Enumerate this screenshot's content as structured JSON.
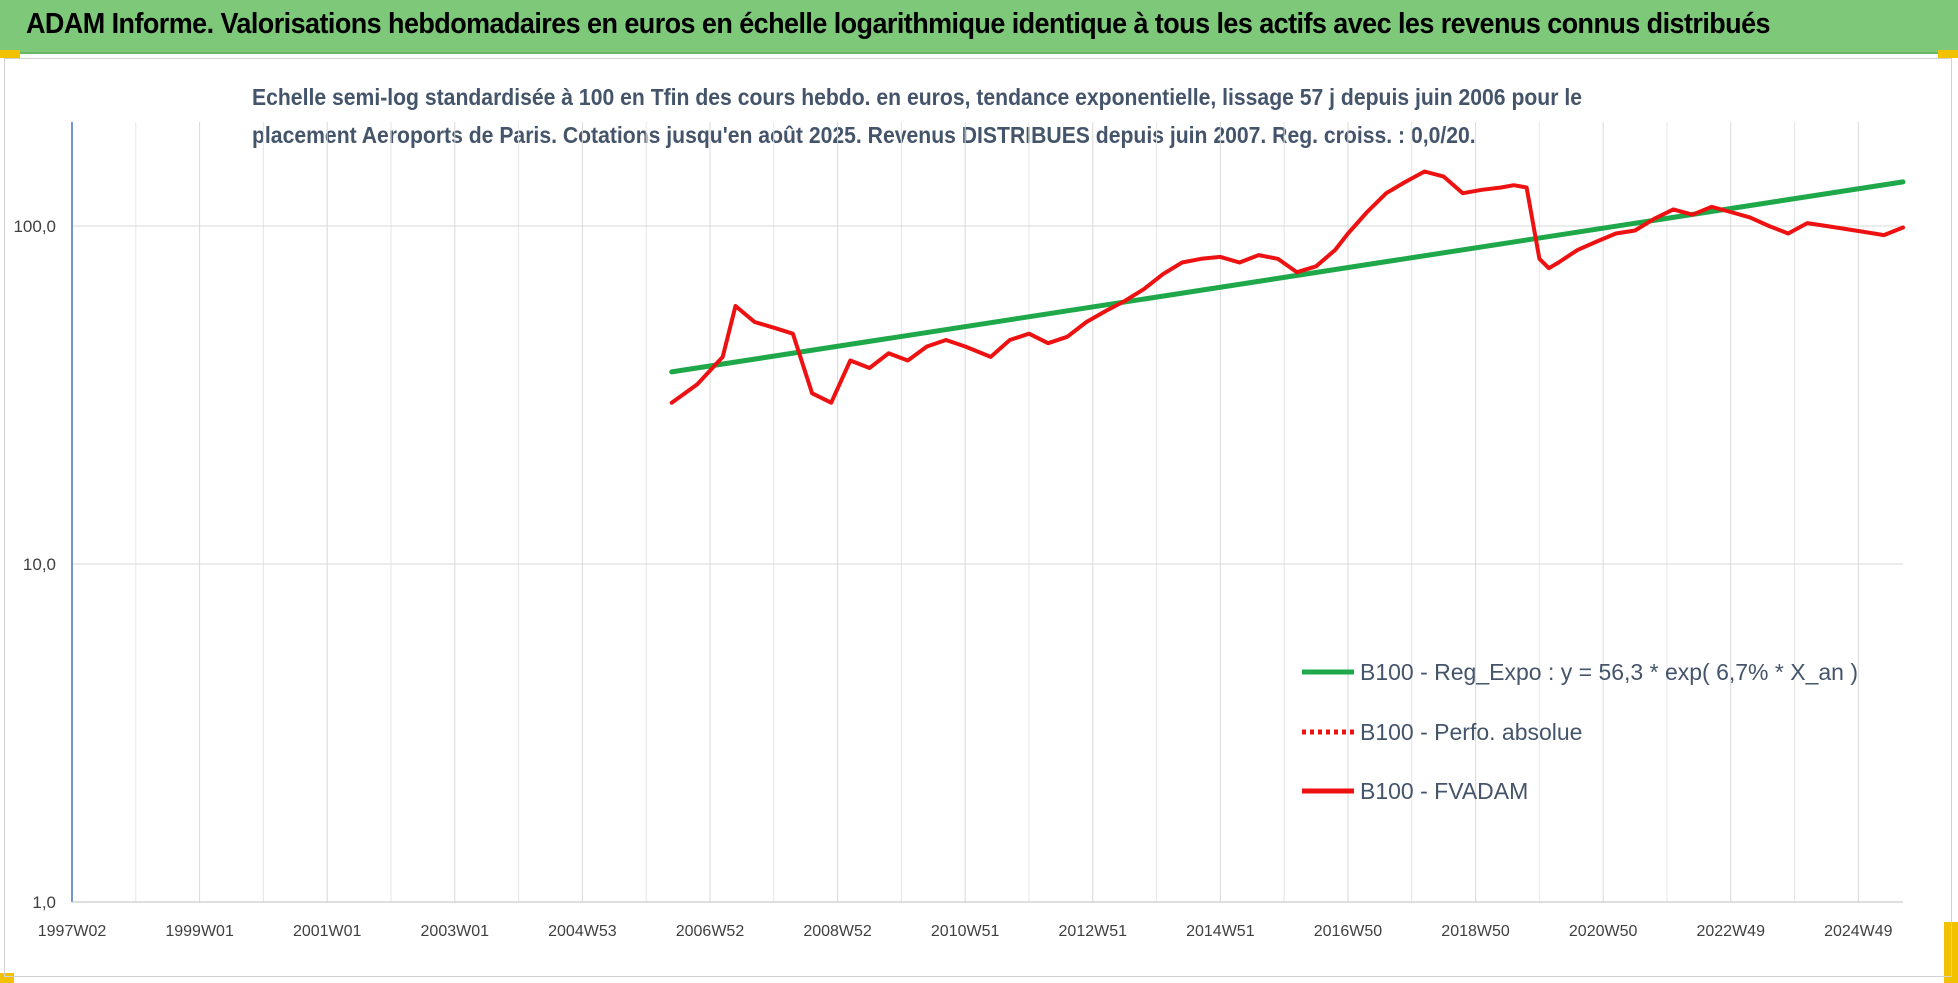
{
  "banner": {
    "title": "ADAM Informe. Valorisations hebdomadaires en euros en échelle logarithmique identique à tous les actifs avec les revenus connus distribués"
  },
  "colors": {
    "banner_bg": "#7ec87a",
    "trend_line": "#1fa84a",
    "fvadam_line": "#ee1111",
    "corner_marks": "#f2c200",
    "title_text": "#44546a"
  },
  "chart_data": {
    "type": "line",
    "title_lines": [
      "Echelle semi-log standardisée à 100 en Tfin des cours hebdo. en euros, tendance exponentielle, lissage 57 j depuis juin 2006 pour le",
      "placement Aeroports de Paris. Cotations jusqu'en août 2025. Revenus DISTRIBUES depuis juin 2007. Reg. croiss. : 0,0/20."
    ],
    "y_scale": "log",
    "ylim": [
      1,
      200
    ],
    "y_ticks": [
      {
        "value": 1,
        "label": "1,0"
      },
      {
        "value": 10,
        "label": "10,0"
      },
      {
        "value": 100,
        "label": "100,0"
      }
    ],
    "xlim": [
      1997.0,
      2025.7
    ],
    "x_ticks": [
      {
        "value": 1997.0,
        "label": "1997W02"
      },
      {
        "value": 1999.0,
        "label": "1999W01"
      },
      {
        "value": 2001.0,
        "label": "2001W01"
      },
      {
        "value": 2003.0,
        "label": "2003W01"
      },
      {
        "value": 2005.0,
        "label": "2004W53"
      },
      {
        "value": 2007.0,
        "label": "2006W52"
      },
      {
        "value": 2009.0,
        "label": "2008W52"
      },
      {
        "value": 2011.0,
        "label": "2010W51"
      },
      {
        "value": 2013.0,
        "label": "2012W51"
      },
      {
        "value": 2015.0,
        "label": "2014W51"
      },
      {
        "value": 2017.0,
        "label": "2016W50"
      },
      {
        "value": 2019.0,
        "label": "2018W50"
      },
      {
        "value": 2021.0,
        "label": "2020W50"
      },
      {
        "value": 2023.0,
        "label": "2022W49"
      },
      {
        "value": 2025.0,
        "label": "2024W49"
      }
    ],
    "grid": true,
    "legend_position": "bottom-right",
    "series": [
      {
        "name": "B100 - Reg_Expo : y = 56,3 * exp( 6,7% *  X_an )",
        "style": "solid",
        "color": "#1fa84a",
        "x": [
          2006.4,
          2025.7
        ],
        "y": [
          37,
          135
        ]
      },
      {
        "name": "B100 - Perfo. absolue",
        "style": "dotted",
        "color": "#ee1111",
        "x": [],
        "y": []
      },
      {
        "name": "B100 - FVADAM",
        "style": "solid",
        "color": "#ee1111",
        "x": [
          2006.4,
          2006.8,
          2007.2,
          2007.4,
          2007.7,
          2008.0,
          2008.3,
          2008.6,
          2008.9,
          2009.2,
          2009.5,
          2009.8,
          2010.1,
          2010.4,
          2010.7,
          2011.0,
          2011.4,
          2011.7,
          2012.0,
          2012.3,
          2012.6,
          2012.9,
          2013.2,
          2013.5,
          2013.8,
          2014.1,
          2014.4,
          2014.7,
          2015.0,
          2015.3,
          2015.6,
          2015.9,
          2016.2,
          2016.5,
          2016.8,
          2017.0,
          2017.3,
          2017.6,
          2017.9,
          2018.2,
          2018.5,
          2018.8,
          2019.1,
          2019.4,
          2019.6,
          2019.8,
          2020.0,
          2020.15,
          2020.3,
          2020.6,
          2020.9,
          2021.2,
          2021.5,
          2021.8,
          2022.1,
          2022.4,
          2022.7,
          2023.0,
          2023.3,
          2023.6,
          2023.9,
          2024.2,
          2024.5,
          2024.8,
          2025.1,
          2025.4,
          2025.7
        ],
        "y": [
          30,
          34,
          41,
          58,
          52,
          50,
          48,
          32,
          30,
          40,
          38,
          42,
          40,
          44,
          46,
          44,
          41,
          46,
          48,
          45,
          47,
          52,
          56,
          60,
          65,
          72,
          78,
          80,
          81,
          78,
          82,
          80,
          73,
          76,
          85,
          95,
          110,
          125,
          135,
          145,
          140,
          125,
          128,
          130,
          132,
          130,
          80,
          75,
          78,
          85,
          90,
          95,
          97,
          105,
          112,
          108,
          114,
          110,
          106,
          100,
          95,
          102,
          100,
          98,
          96,
          94,
          99
        ]
      }
    ]
  }
}
